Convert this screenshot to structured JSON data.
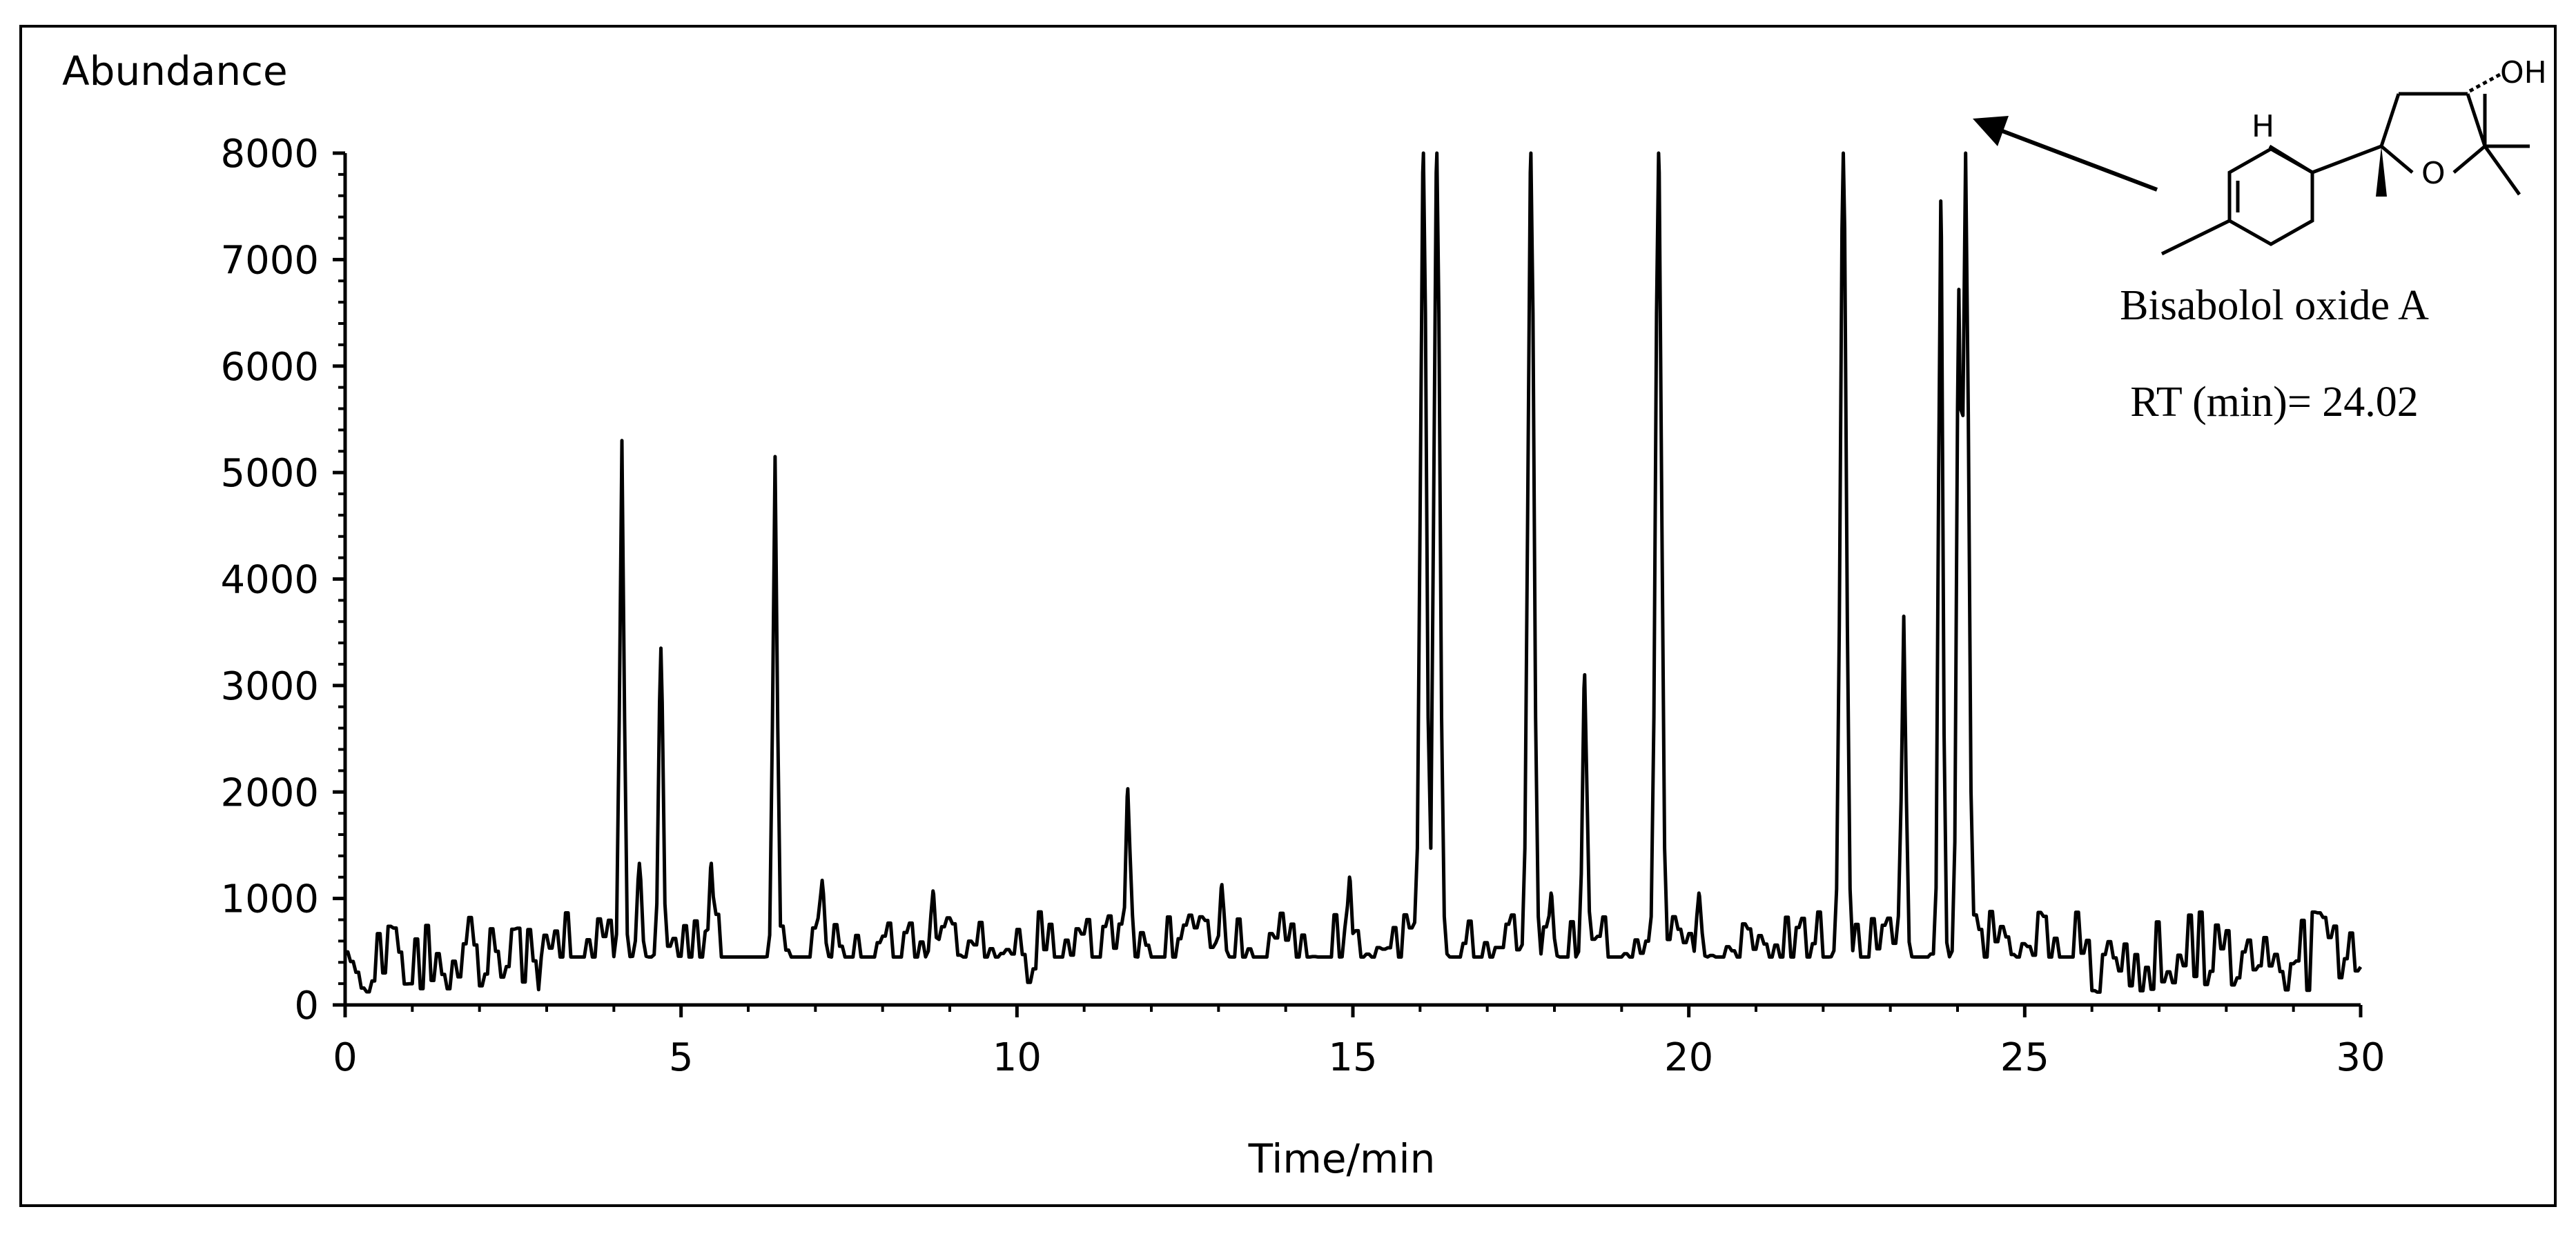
{
  "chart_data": {
    "type": "line",
    "ylabel": "Abundance",
    "xlabel": "Time/min",
    "xlim": [
      0,
      30
    ],
    "ylim": [
      0,
      8000
    ],
    "x_ticks": [
      "0",
      "5",
      "10",
      "15",
      "20",
      "25",
      "30"
    ],
    "y_ticks": [
      "0",
      "1000",
      "2000",
      "3000",
      "4000",
      "5000",
      "6000",
      "7000",
      "8000"
    ],
    "grid": false,
    "legend": "none",
    "baseline": {
      "x_start": 0,
      "x_end": 30,
      "noise_min": 120,
      "noise_max": 880
    },
    "peaks": [
      {
        "x": 4.12,
        "y": 5300
      },
      {
        "x": 4.38,
        "y": 1330
      },
      {
        "x": 4.7,
        "y": 3350
      },
      {
        "x": 5.45,
        "y": 1330
      },
      {
        "x": 6.4,
        "y": 5150
      },
      {
        "x": 7.1,
        "y": 1170
      },
      {
        "x": 8.75,
        "y": 1070
      },
      {
        "x": 11.65,
        "y": 2030
      },
      {
        "x": 13.05,
        "y": 1130
      },
      {
        "x": 14.95,
        "y": 1200
      },
      {
        "x": 16.05,
        "y": 8000
      },
      {
        "x": 16.25,
        "y": 8000
      },
      {
        "x": 17.65,
        "y": 8000
      },
      {
        "x": 17.95,
        "y": 1050
      },
      {
        "x": 18.45,
        "y": 3100
      },
      {
        "x": 19.55,
        "y": 8000
      },
      {
        "x": 20.15,
        "y": 1050
      },
      {
        "x": 22.3,
        "y": 8000
      },
      {
        "x": 23.2,
        "y": 3650
      },
      {
        "x": 23.75,
        "y": 7550
      },
      {
        "x": 24.02,
        "y": 6720
      },
      {
        "x": 24.12,
        "y": 8000
      }
    ],
    "annotation": {
      "compound": "Bisabolol oxide A",
      "retention": "RT (min)= 24.02",
      "structure_labels": {
        "hydroxyl": "OH",
        "oxygen": "O",
        "hydrogen": "H"
      },
      "arrow_points_to": "top-right of plot"
    }
  },
  "colors": {
    "line": "#000000",
    "axis": "#000000",
    "background": "#ffffff",
    "frame": "#000000"
  }
}
